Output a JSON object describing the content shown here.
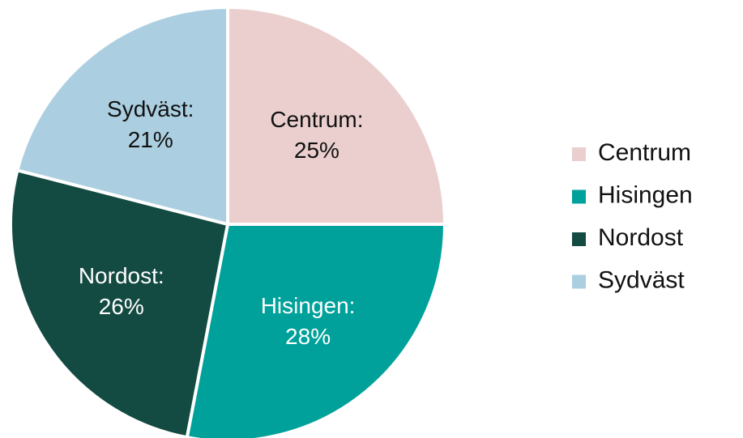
{
  "chart_data": {
    "type": "pie",
    "categories": [
      "Centrum",
      "Hisingen",
      "Nordost",
      "Sydväst"
    ],
    "values": [
      25,
      28,
      26,
      21
    ],
    "value_labels": [
      "Centrum:\n25%",
      "Hisingen:\n28%",
      "Nordost:\n26%",
      "Sydväst:\n21%"
    ],
    "colors": [
      "#ebcfcf",
      "#00a19a",
      "#134a42",
      "#abcfe0"
    ],
    "label_colors": [
      "#111111",
      "#ffffff",
      "#ffffff",
      "#111111"
    ],
    "legend": "right"
  }
}
